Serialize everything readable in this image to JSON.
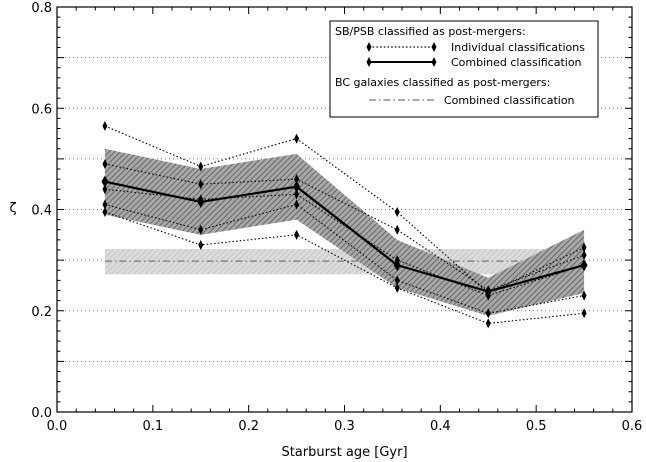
{
  "chart_data": {
    "type": "line",
    "xlabel": "Starburst age [Gyr]",
    "ylabel": "ζ",
    "xlim": [
      0.0,
      0.6
    ],
    "ylim": [
      0.0,
      0.8
    ],
    "x_ticks": [
      "0.0",
      "0.1",
      "0.2",
      "0.3",
      "0.4",
      "0.5",
      "0.6"
    ],
    "y_ticks": [
      "0.0",
      "0.2",
      "0.4",
      "0.6",
      "0.8"
    ],
    "grid": "horizontal dotted",
    "legend": {
      "position": "top-right",
      "group1_title": "SB/PSB classified as post-mergers:",
      "individual_label": "Individual classifications",
      "combined_label": "Combined classification",
      "group2_title": "BC galaxies classified as post-mergers:",
      "bc_label": "Combined classification"
    },
    "x": [
      0.05,
      0.15,
      0.25,
      0.355,
      0.45,
      0.55
    ],
    "series": [
      {
        "name": "Combined classification",
        "role": "combined",
        "values": [
          0.455,
          0.415,
          0.445,
          0.29,
          0.238,
          0.29
        ]
      },
      {
        "name": "Individual classifications",
        "role": "individual",
        "values": [
          0.565,
          0.485,
          0.54,
          0.395,
          0.235,
          0.325
        ]
      },
      {
        "role": "individual",
        "values": [
          0.49,
          0.45,
          0.46,
          0.36,
          0.24,
          0.31
        ]
      },
      {
        "role": "individual",
        "values": [
          0.44,
          0.42,
          0.43,
          0.3,
          0.23,
          0.29
        ]
      },
      {
        "role": "individual",
        "values": [
          0.41,
          0.36,
          0.41,
          0.26,
          0.195,
          0.23
        ]
      },
      {
        "role": "individual",
        "values": [
          0.395,
          0.33,
          0.35,
          0.245,
          0.175,
          0.195
        ]
      }
    ],
    "uncertainty_band": {
      "upper": [
        0.52,
        0.48,
        0.51,
        0.34,
        0.265,
        0.36
      ],
      "lower": [
        0.39,
        0.35,
        0.38,
        0.245,
        0.19,
        0.235
      ]
    },
    "bc_galaxies": {
      "value": 0.298,
      "band": [
        0.272,
        0.322
      ]
    },
    "colors": {
      "axes": "#000000",
      "combined_line": "#000000",
      "individual_line": "#000000",
      "band_fill": "#8c8c8c",
      "bc_band_fill": "#d4d4d4",
      "bc_line": "#777777",
      "grid": "#555555"
    }
  }
}
